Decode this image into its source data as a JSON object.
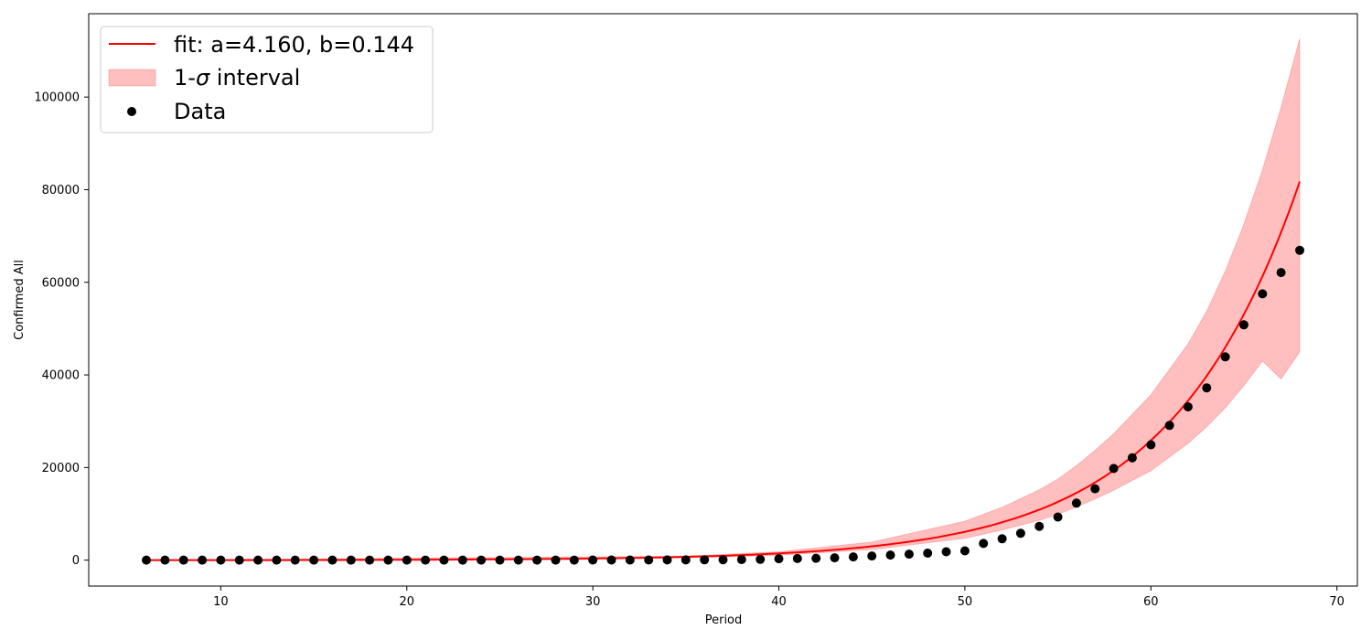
{
  "chart_data": {
    "type": "scatter",
    "xlabel": "Period",
    "ylabel": "Confirmed All",
    "xlim": [
      2.9,
      71.1
    ],
    "ylim": [
      -5600,
      118000
    ],
    "xticks": [
      10,
      20,
      30,
      40,
      50,
      60,
      70
    ],
    "yticks": [
      0,
      20000,
      40000,
      60000,
      80000,
      100000
    ],
    "grid": false,
    "legend_position": "top-left",
    "legend": {
      "fit_label": "fit: a=4.160, b=0.144",
      "interval_prefix": "1-",
      "interval_symbol": "σ",
      "interval_suffix": " interval",
      "data_label": "Data"
    },
    "colors": {
      "fit": "#ff0000",
      "interval_fill": "#ff0000",
      "interval_opacity": 0.25,
      "data": "#000000"
    },
    "fit": {
      "a": 4.16,
      "b": 0.144
    },
    "interval": {
      "x": [
        6,
        35,
        40,
        45,
        50,
        52,
        54,
        55,
        56,
        57,
        58,
        60,
        62,
        63,
        64,
        65,
        66,
        67,
        68
      ],
      "upper": [
        0,
        850,
        1800,
        3900,
        8400,
        11400,
        15200,
        17500,
        20400,
        23700,
        27300,
        35700,
        46700,
        53800,
        62400,
        72500,
        84300,
        97800,
        112600
      ],
      "lower": [
        0,
        500,
        1050,
        2300,
        4700,
        6500,
        8600,
        9900,
        11500,
        13200,
        15100,
        19300,
        25200,
        28800,
        32900,
        37700,
        43000,
        39100,
        45000
      ]
    },
    "series": [
      {
        "name": "Data",
        "x": [
          6,
          7,
          8,
          9,
          10,
          11,
          12,
          13,
          14,
          15,
          16,
          17,
          18,
          19,
          20,
          21,
          22,
          23,
          24,
          25,
          26,
          27,
          28,
          29,
          30,
          31,
          32,
          33,
          34,
          35,
          36,
          37,
          38,
          39,
          40,
          41,
          42,
          43,
          44,
          45,
          46,
          47,
          48,
          49,
          50,
          51,
          52,
          53,
          54,
          55,
          56,
          57,
          58,
          59,
          60,
          61,
          62,
          63,
          64,
          65,
          66,
          67,
          68
        ],
        "y": [
          1,
          1,
          1,
          1,
          1,
          2,
          2,
          2,
          2,
          3,
          3,
          4,
          4,
          5,
          5,
          6,
          7,
          8,
          9,
          10,
          11,
          12,
          14,
          16,
          18,
          20,
          24,
          30,
          40,
          50,
          70,
          90,
          120,
          160,
          300,
          350,
          400,
          500,
          700,
          900,
          1100,
          1300,
          1500,
          1800,
          2000,
          3600,
          4600,
          5800,
          7300,
          9300,
          12300,
          15400,
          19800,
          22100,
          24900,
          29100,
          33100,
          37200,
          43900,
          50800,
          57500,
          62100,
          66900
        ]
      }
    ]
  }
}
